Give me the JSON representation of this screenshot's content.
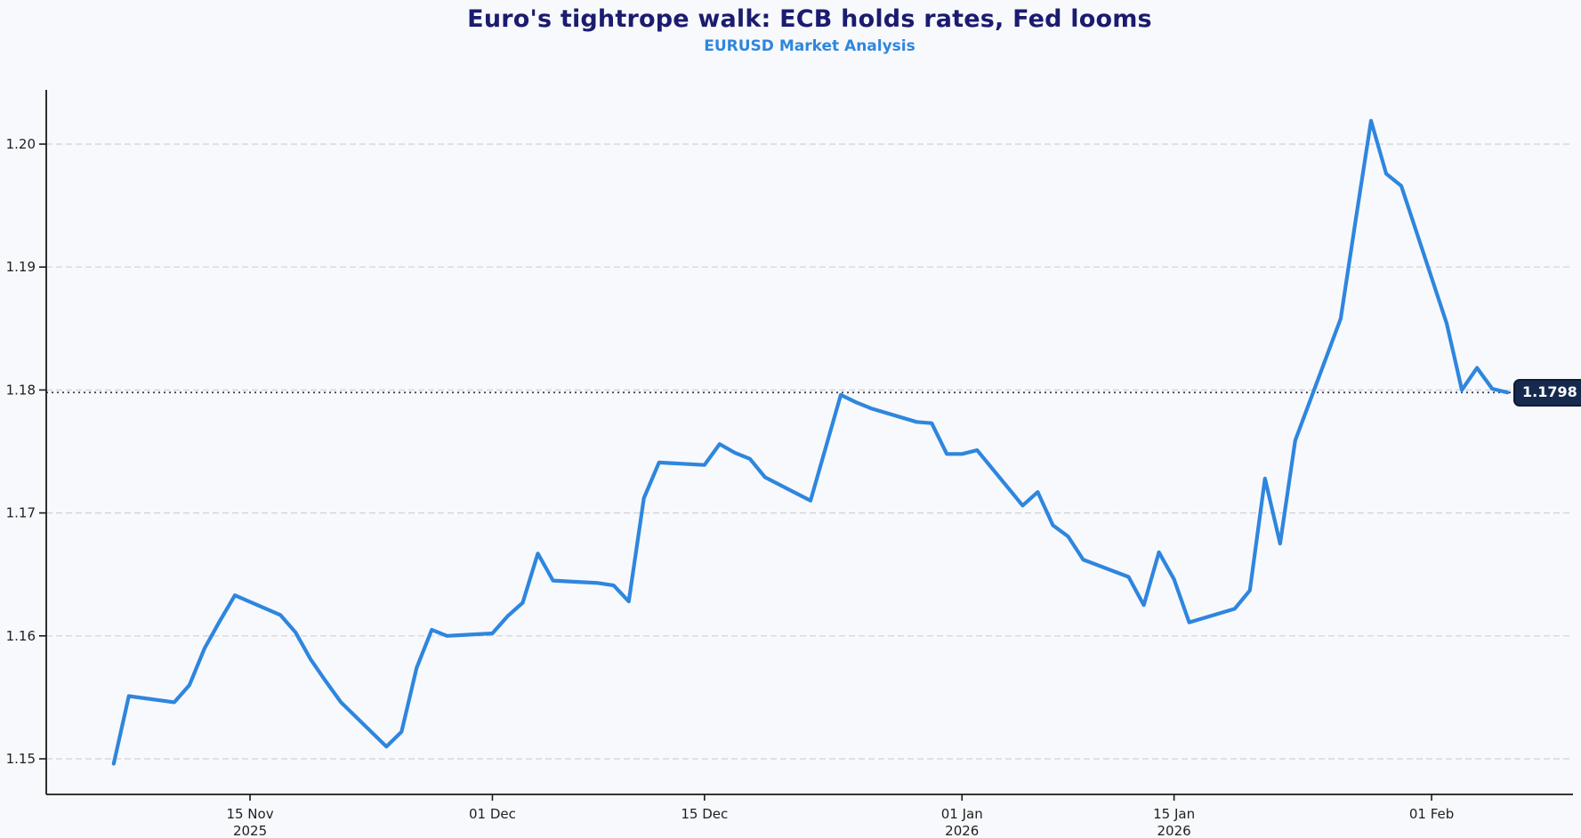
{
  "header": {
    "title": "Euro's tightrope walk: ECB holds rates, Fed looms",
    "subtitle": "EURUSD Market Analysis"
  },
  "chart_data": {
    "type": "line",
    "title": "Euro's tightrope walk: ECB holds rates, Fed looms",
    "subtitle": "EURUSD Market Analysis",
    "xlabel": "",
    "ylabel": "",
    "grid": "horizontal-dashed",
    "legend_position": "none",
    "ylim": [
      1.147,
      1.2045
    ],
    "yticks": [
      1.15,
      1.16,
      1.17,
      1.18,
      1.19,
      1.2
    ],
    "xticks": [
      {
        "date": "2025-11-15",
        "label": [
          "15 Nov",
          "2025"
        ]
      },
      {
        "date": "2025-12-01",
        "label": [
          "01 Dec"
        ]
      },
      {
        "date": "2025-12-15",
        "label": [
          "15 Dec"
        ]
      },
      {
        "date": "2026-01-01",
        "label": [
          "01 Jan",
          "2026"
        ]
      },
      {
        "date": "2026-01-15",
        "label": [
          "15 Jan",
          "2026"
        ]
      },
      {
        "date": "2026-02-01",
        "label": [
          "01 Feb"
        ]
      }
    ],
    "series": [
      {
        "name": "EURUSD",
        "color": "#2e86de",
        "dates": [
          "2025-11-06",
          "2025-11-07",
          "2025-11-10",
          "2025-11-11",
          "2025-11-12",
          "2025-11-13",
          "2025-11-14",
          "2025-11-17",
          "2025-11-18",
          "2025-11-19",
          "2025-11-20",
          "2025-11-21",
          "2025-11-24",
          "2025-11-25",
          "2025-11-26",
          "2025-11-27",
          "2025-11-28",
          "2025-12-01",
          "2025-12-02",
          "2025-12-03",
          "2025-12-04",
          "2025-12-05",
          "2025-12-08",
          "2025-12-09",
          "2025-12-10",
          "2025-12-11",
          "2025-12-12",
          "2025-12-15",
          "2025-12-16",
          "2025-12-17",
          "2025-12-18",
          "2025-12-19",
          "2025-12-22",
          "2025-12-23",
          "2025-12-24",
          "2025-12-25",
          "2025-12-26",
          "2025-12-29",
          "2025-12-30",
          "2025-12-31",
          "2026-01-01",
          "2026-01-02",
          "2026-01-05",
          "2026-01-06",
          "2026-01-07",
          "2026-01-08",
          "2026-01-09",
          "2026-01-12",
          "2026-01-13",
          "2026-01-14",
          "2026-01-15",
          "2026-01-16",
          "2026-01-19",
          "2026-01-20",
          "2026-01-21",
          "2026-01-22",
          "2026-01-23",
          "2026-01-26",
          "2026-01-27",
          "2026-01-28",
          "2026-01-29",
          "2026-01-30",
          "2026-02-02",
          "2026-02-03",
          "2026-02-04",
          "2026-02-05",
          "2026-02-06"
        ],
        "values": [
          1.1496,
          1.1551,
          1.1546,
          1.156,
          1.159,
          1.1612,
          1.1633,
          1.1617,
          1.1603,
          1.1581,
          1.1563,
          1.1546,
          1.151,
          1.1522,
          1.1574,
          1.1605,
          1.16,
          1.1602,
          1.1616,
          1.1627,
          1.1667,
          1.1645,
          1.1643,
          1.1641,
          1.1628,
          1.1712,
          1.1741,
          1.1739,
          1.1756,
          1.1749,
          1.1744,
          1.1729,
          1.171,
          1.1753,
          1.1796,
          1.179,
          1.1785,
          1.1774,
          1.1773,
          1.1748,
          1.1748,
          1.1751,
          1.1706,
          1.1717,
          1.169,
          1.1681,
          1.1662,
          1.1648,
          1.1625,
          1.1668,
          1.1646,
          1.1611,
          1.1622,
          1.1637,
          1.1728,
          1.1675,
          1.1759,
          1.1858,
          1.1939,
          1.2019,
          1.1976,
          1.1966,
          1.1854,
          1.18,
          1.1818,
          1.1801,
          1.1798
        ]
      }
    ],
    "last_price": {
      "value": 1.1798,
      "label": "1.1798",
      "line_style": "dotted",
      "box_color": "#16294e",
      "text_color": "#ffffff"
    },
    "colors": {
      "line": "#2e86de",
      "title": "#1b1b70",
      "subtitle": "#2e86de",
      "grid": "#d2d2d2",
      "axis": "#1a1a1a",
      "tick_label": "#1f1f1f",
      "background": "#f8f9fc"
    }
  }
}
